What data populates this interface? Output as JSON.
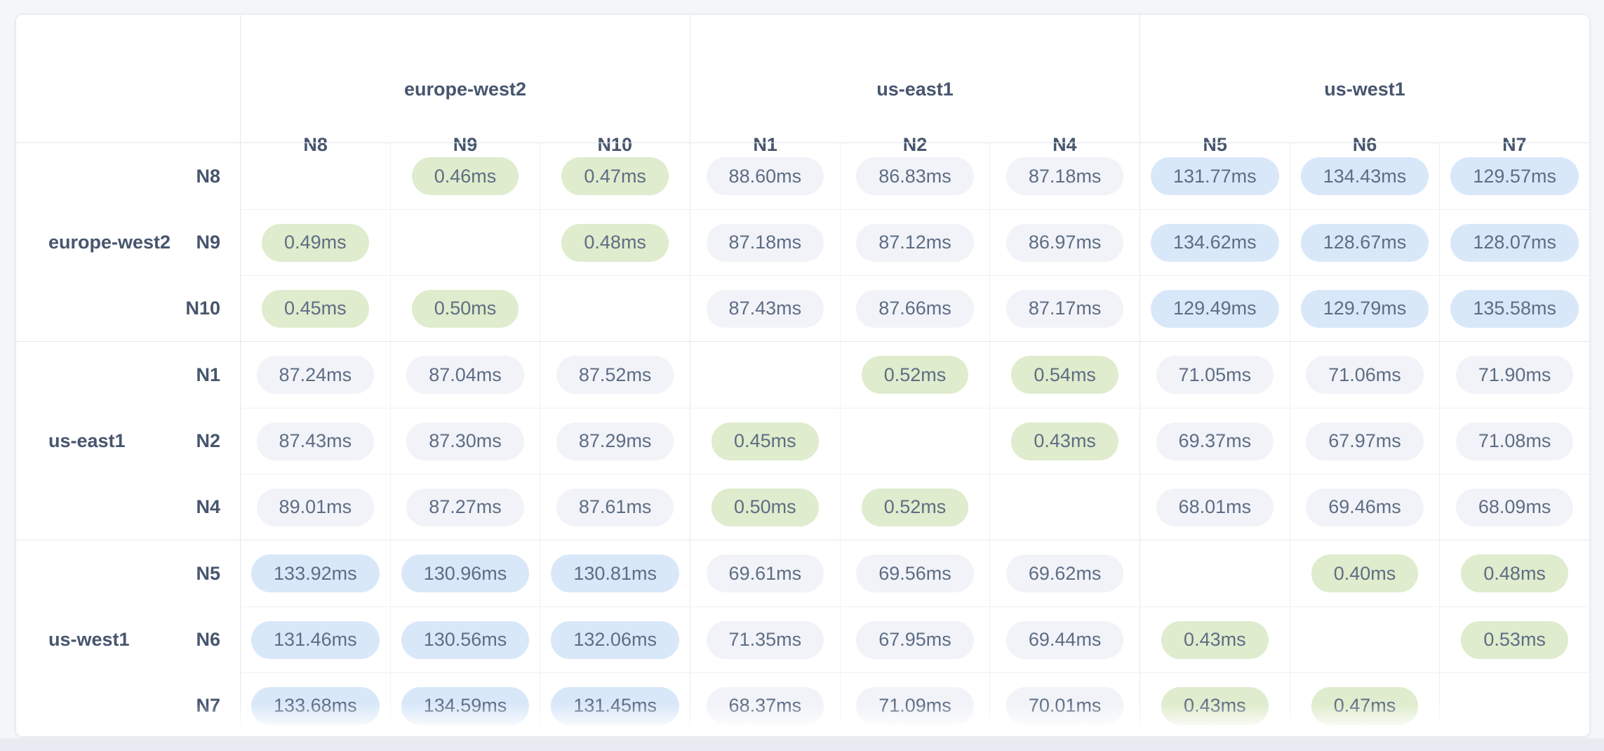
{
  "latency_matrix": {
    "unit": "ms",
    "regions": [
      {
        "name": "europe-west2",
        "nodes": [
          "N8",
          "N9",
          "N10"
        ]
      },
      {
        "name": "us-east1",
        "nodes": [
          "N1",
          "N2",
          "N4"
        ]
      },
      {
        "name": "us-west1",
        "nodes": [
          "N5",
          "N6",
          "N7"
        ]
      }
    ],
    "column_nodes": [
      "N8",
      "N9",
      "N10",
      "N1",
      "N2",
      "N4",
      "N5",
      "N6",
      "N7"
    ],
    "rows": [
      {
        "region": "europe-west2",
        "node": "N8",
        "values": [
          null,
          "0.46ms",
          "0.47ms",
          "88.60ms",
          "86.83ms",
          "87.18ms",
          "131.77ms",
          "134.43ms",
          "129.57ms"
        ]
      },
      {
        "region": "europe-west2",
        "node": "N9",
        "values": [
          "0.49ms",
          null,
          "0.48ms",
          "87.18ms",
          "87.12ms",
          "86.97ms",
          "134.62ms",
          "128.67ms",
          "128.07ms"
        ]
      },
      {
        "region": "europe-west2",
        "node": "N10",
        "values": [
          "0.45ms",
          "0.50ms",
          null,
          "87.43ms",
          "87.66ms",
          "87.17ms",
          "129.49ms",
          "129.79ms",
          "135.58ms"
        ]
      },
      {
        "region": "us-east1",
        "node": "N1",
        "values": [
          "87.24ms",
          "87.04ms",
          "87.52ms",
          null,
          "0.52ms",
          "0.54ms",
          "71.05ms",
          "71.06ms",
          "71.90ms"
        ]
      },
      {
        "region": "us-east1",
        "node": "N2",
        "values": [
          "87.43ms",
          "87.30ms",
          "87.29ms",
          "0.45ms",
          null,
          "0.43ms",
          "69.37ms",
          "67.97ms",
          "71.08ms"
        ]
      },
      {
        "region": "us-east1",
        "node": "N4",
        "values": [
          "89.01ms",
          "87.27ms",
          "87.61ms",
          "0.50ms",
          "0.52ms",
          null,
          "68.01ms",
          "69.46ms",
          "68.09ms"
        ]
      },
      {
        "region": "us-west1",
        "node": "N5",
        "values": [
          "133.92ms",
          "130.96ms",
          "130.81ms",
          "69.61ms",
          "69.56ms",
          "69.62ms",
          null,
          "0.40ms",
          "0.48ms"
        ]
      },
      {
        "region": "us-west1",
        "node": "N6",
        "values": [
          "131.46ms",
          "130.56ms",
          "132.06ms",
          "71.35ms",
          "67.95ms",
          "69.44ms",
          "0.43ms",
          null,
          "0.53ms"
        ]
      },
      {
        "region": "us-west1",
        "node": "N7",
        "values": [
          "133.68ms",
          "134.59ms",
          "131.45ms",
          "68.37ms",
          "71.09ms",
          "70.01ms",
          "0.43ms",
          "0.47ms",
          null
        ]
      }
    ],
    "legend_colors": {
      "intra_region_low": "#dfeccd",
      "mid_latency": "#f1f3f8",
      "high_latency": "#d9e8f9"
    },
    "tone_thresholds_ms": {
      "low_below": 1,
      "high_at_or_above": 100
    }
  }
}
